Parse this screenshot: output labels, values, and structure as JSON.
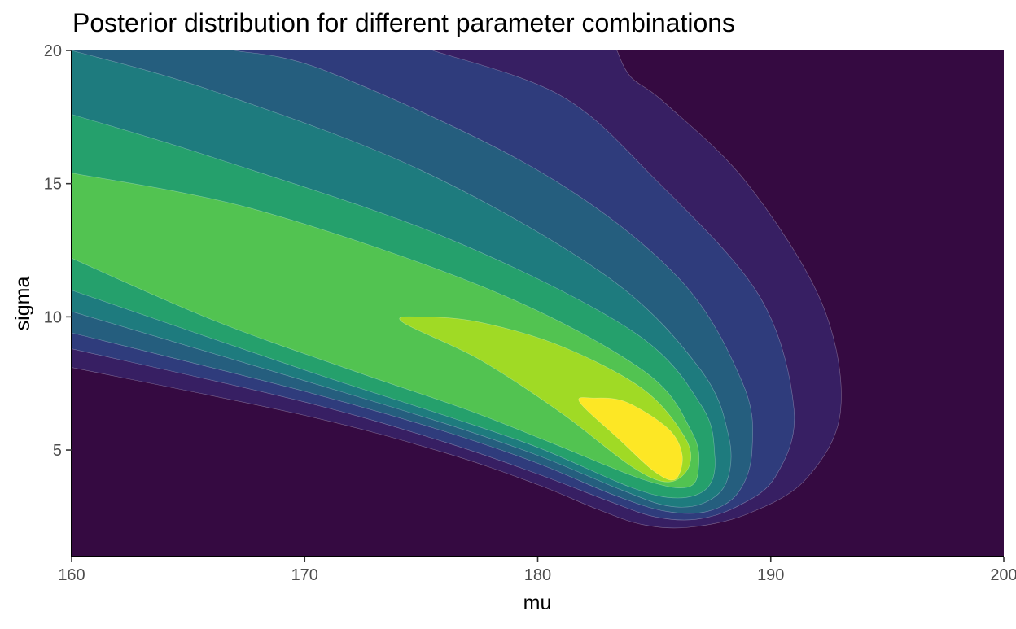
{
  "chart_data": {
    "type": "contour",
    "title": "Posterior distribution for different parameter combinations",
    "xlabel": "mu",
    "ylabel": "sigma",
    "xlim": [
      160,
      200
    ],
    "ylim": [
      1,
      20
    ],
    "x_ticks": [
      160,
      170,
      180,
      190,
      200
    ],
    "y_ticks": [
      5,
      10,
      15,
      20
    ],
    "grid": false,
    "legend": "none",
    "mode": {
      "mu": 184.2,
      "sigma": 5.5
    },
    "fill_palette": [
      "#350A41",
      "#371F63",
      "#2F3C7C",
      "#255E7E",
      "#1E7B7E",
      "#25A06C",
      "#52C351",
      "#A0DA25",
      "#FDE725"
    ],
    "levels": [
      {
        "level": 1,
        "color": "#371F63",
        "outline": [
          [
            160,
            8.1
          ],
          [
            170,
            6.3
          ],
          [
            176,
            4.9
          ],
          [
            180,
            3.7
          ],
          [
            182.5,
            2.8
          ],
          [
            184.5,
            2.2
          ],
          [
            186.5,
            2.1
          ],
          [
            189,
            2.6
          ],
          [
            191.5,
            3.9
          ],
          [
            193,
            6.5
          ],
          [
            192.2,
            10.5
          ],
          [
            189,
            15.0
          ],
          [
            185.5,
            18.0
          ],
          [
            184,
            19.0
          ],
          [
            183.4,
            20.0
          ]
        ]
      },
      {
        "level": 2,
        "color": "#2F3C7C",
        "outline": [
          [
            160,
            8.8
          ],
          [
            170,
            6.8
          ],
          [
            176,
            5.3
          ],
          [
            180,
            4.1
          ],
          [
            183,
            3.1
          ],
          [
            185,
            2.5
          ],
          [
            186.8,
            2.4
          ],
          [
            188.6,
            2.9
          ],
          [
            190.2,
            4.0
          ],
          [
            191,
            6.5
          ],
          [
            189.5,
            10.8
          ],
          [
            185,
            15.2
          ],
          [
            181,
            18.3
          ],
          [
            175.5,
            20.0
          ]
        ]
      },
      {
        "level": 3,
        "color": "#255E7E",
        "outline": [
          [
            160,
            9.4
          ],
          [
            170,
            7.2
          ],
          [
            176,
            5.7
          ],
          [
            180,
            4.5
          ],
          [
            183.3,
            3.3
          ],
          [
            185.5,
            2.7
          ],
          [
            187.3,
            2.7
          ],
          [
            188.6,
            3.4
          ],
          [
            189.2,
            5.0
          ],
          [
            188.8,
            7.5
          ],
          [
            186,
            11.5
          ],
          [
            180,
            15.5
          ],
          [
            171,
            19.2
          ],
          [
            167,
            20.0
          ]
        ]
      },
      {
        "level": 4,
        "color": "#1E7B7E",
        "outline": [
          [
            160,
            10.2
          ],
          [
            170,
            7.6
          ],
          [
            176,
            6.0
          ],
          [
            180,
            4.8
          ],
          [
            183.6,
            3.5
          ],
          [
            185.6,
            2.9
          ],
          [
            187.1,
            3.0
          ],
          [
            188.1,
            3.8
          ],
          [
            188.2,
            5.5
          ],
          [
            187,
            8.0
          ],
          [
            183,
            11.5
          ],
          [
            175,
            15.5
          ],
          [
            166,
            18.5
          ],
          [
            160,
            20.0
          ]
        ]
      },
      {
        "level": 5,
        "color": "#25A06C",
        "outline": [
          [
            160,
            11.0
          ],
          [
            170,
            8.0
          ],
          [
            176,
            6.3
          ],
          [
            180,
            5.1
          ],
          [
            184,
            3.6
          ],
          [
            186,
            3.2
          ],
          [
            187.3,
            3.6
          ],
          [
            187.6,
            4.8
          ],
          [
            187,
            6.7
          ],
          [
            184,
            9.5
          ],
          [
            176,
            13.0
          ],
          [
            166,
            16.0
          ],
          [
            160,
            17.6
          ]
        ]
      },
      {
        "level": 6,
        "color": "#52C351",
        "outline": [
          [
            160,
            12.2
          ],
          [
            166,
            9.9
          ],
          [
            172,
            8.0
          ],
          [
            177,
            6.5
          ],
          [
            180.5,
            5.3
          ],
          [
            184.5,
            3.9
          ],
          [
            186.4,
            3.6
          ],
          [
            186.9,
            4.3
          ],
          [
            186.6,
            5.7
          ],
          [
            184.5,
            8.0
          ],
          [
            178,
            11.0
          ],
          [
            168,
            14.0
          ],
          [
            160,
            15.4
          ]
        ]
      },
      {
        "level": 7,
        "color": "#A0DA25",
        "outline": [
          [
            174.2,
            9.8
          ],
          [
            177.5,
            8.4
          ],
          [
            181,
            6.4
          ],
          [
            184,
            4.4
          ],
          [
            185.6,
            3.8
          ],
          [
            186.5,
            4.4
          ],
          [
            186.3,
            5.5
          ],
          [
            184.5,
            7.3
          ],
          [
            181,
            8.9
          ],
          [
            177.5,
            9.8
          ],
          [
            175,
            10.0
          ]
        ]
      },
      {
        "level": 8,
        "color": "#FDE725",
        "outline": [
          [
            181.8,
            6.8
          ],
          [
            183.5,
            5.4
          ],
          [
            185,
            4.2
          ],
          [
            185.9,
            3.9
          ],
          [
            186.2,
            4.8
          ],
          [
            185.6,
            5.8
          ],
          [
            183.8,
            6.8
          ],
          [
            182.4,
            6.95
          ]
        ]
      }
    ]
  }
}
